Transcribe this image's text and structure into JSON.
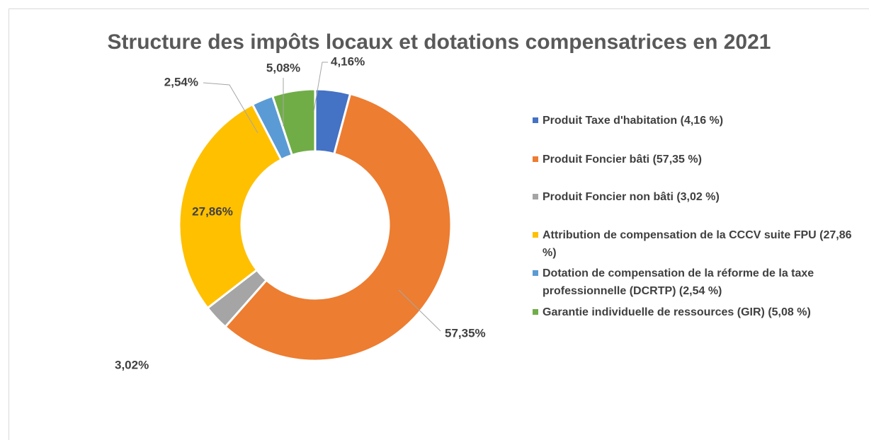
{
  "chart_data": {
    "type": "donut",
    "title": "Structure des impôts locaux et dotations compensatrices en 2021",
    "categories": [
      "Produit Taxe d'habitation (4,16 %)",
      "Produit Foncier bâti (57,35 %)",
      "Produit Foncier non bâti (3,02 %)",
      "Attribution de compensation de la CCCV suite FPU (27,86 %)",
      "Dotation de compensation de la réforme de la taxe professionnelle (DCRTP) (2,54 %)",
      "Garantie individuelle de ressources (GIR) (5,08 %)"
    ],
    "values": [
      4.16,
      57.35,
      3.02,
      27.86,
      2.54,
      5.08
    ],
    "value_labels": [
      "4,16%",
      "57,35%",
      "3,02%",
      "27,86%",
      "2,54%",
      "5,08%"
    ],
    "colors": [
      "#4472c4",
      "#ed7d31",
      "#a5a5a5",
      "#ffc000",
      "#5b9bd5",
      "#70ad47"
    ],
    "legend": "right"
  }
}
